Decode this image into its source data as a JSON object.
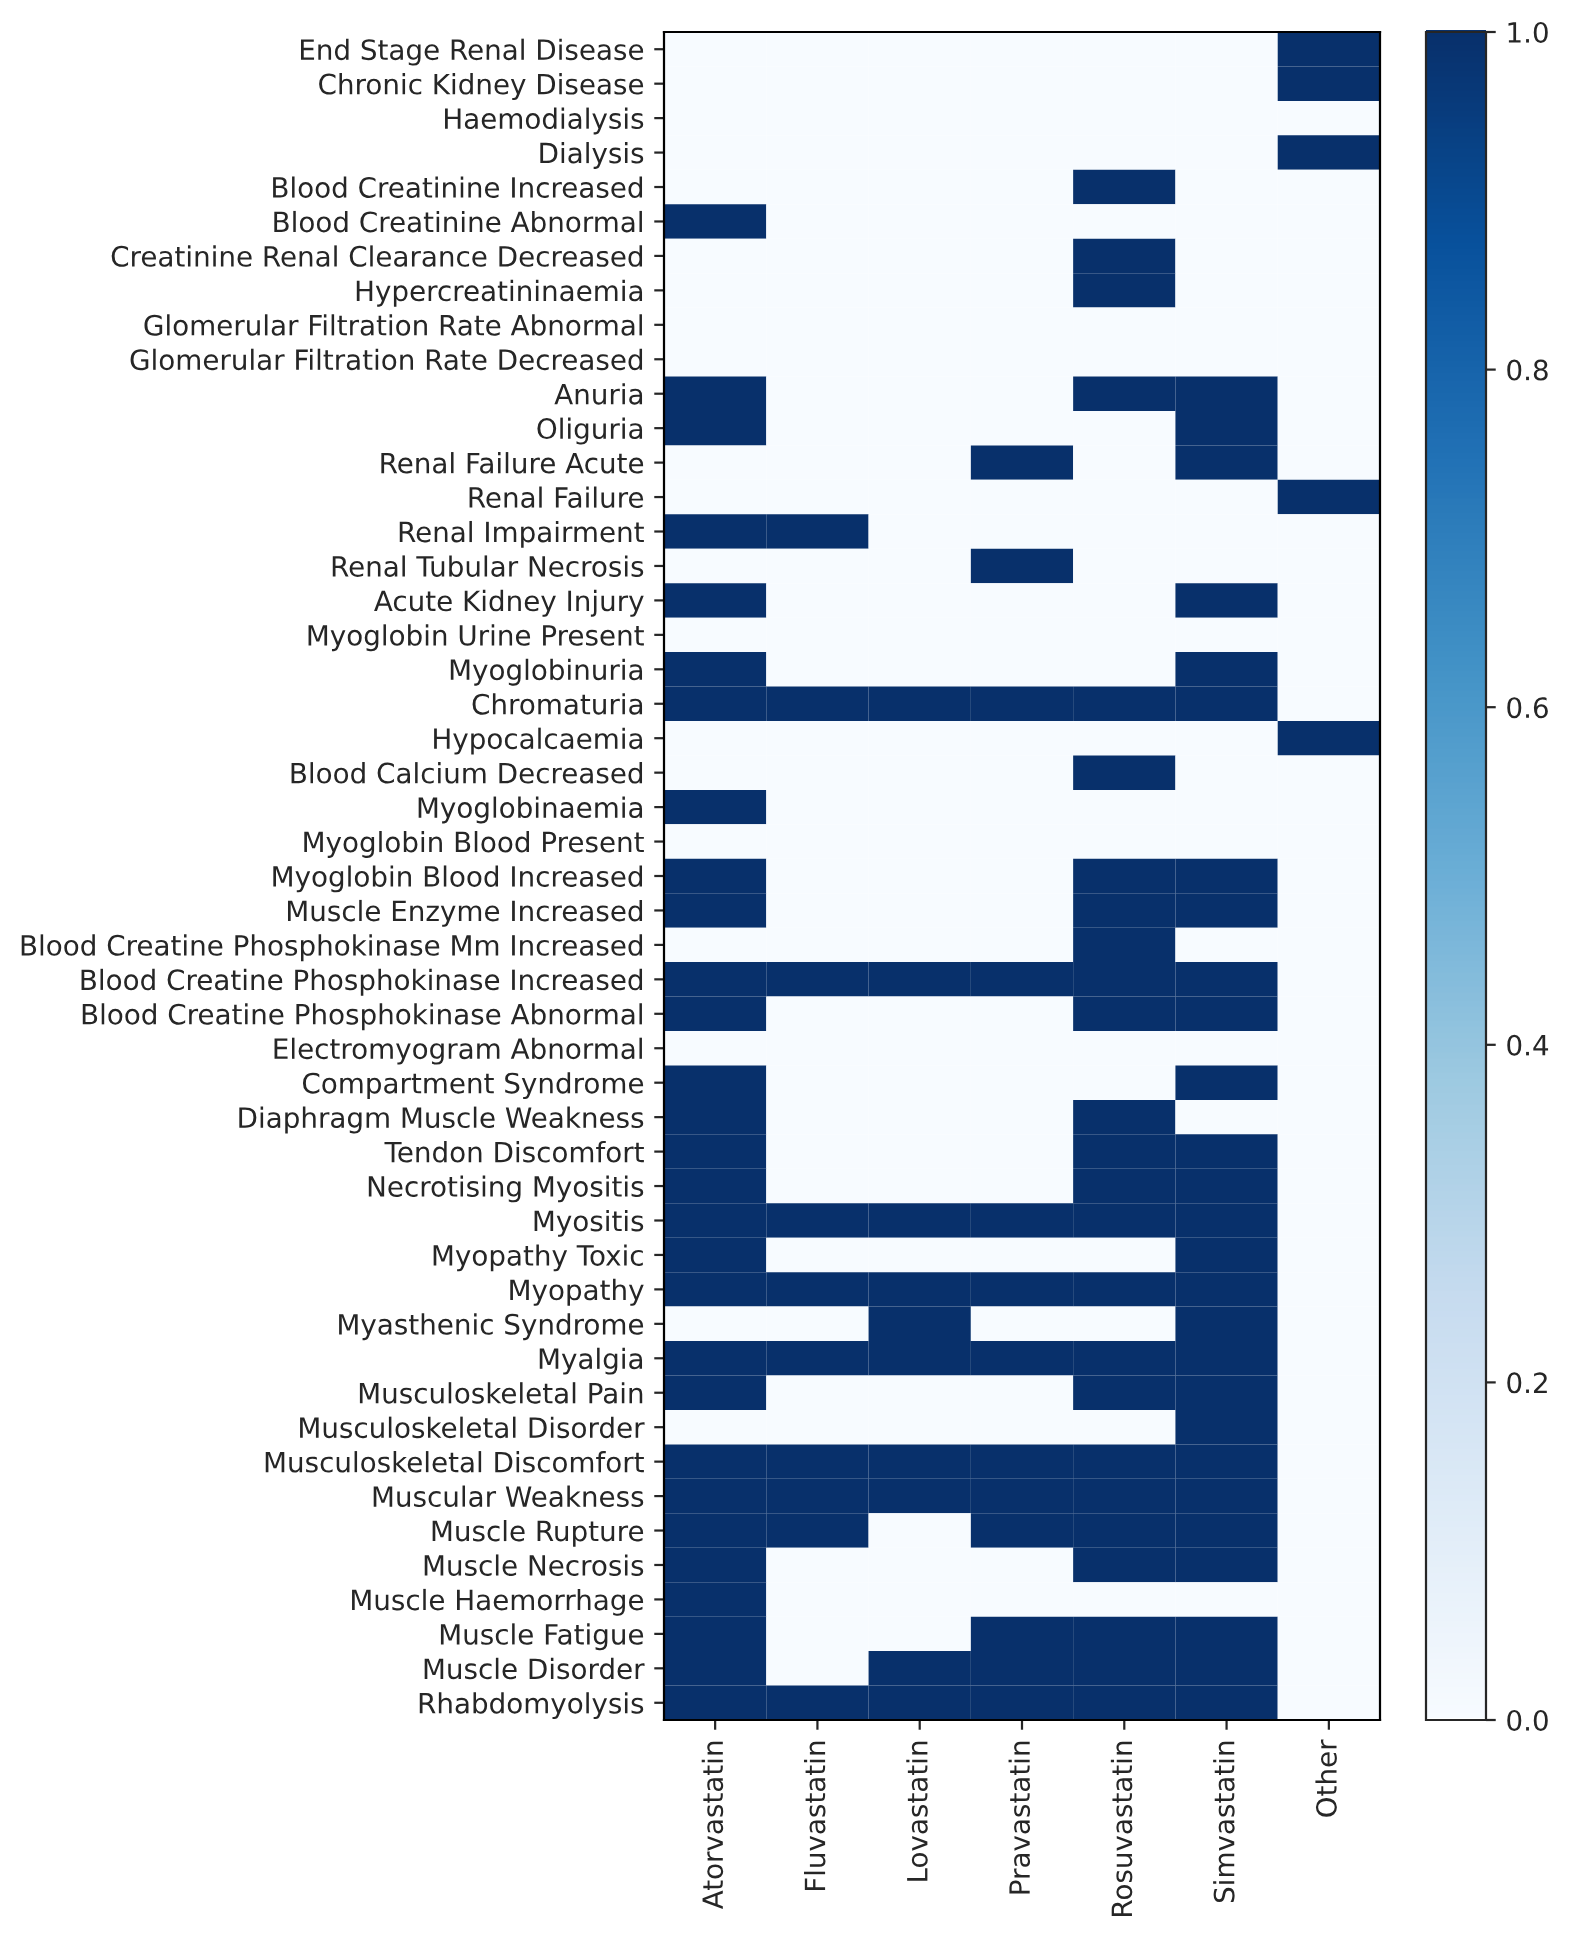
{
  "chart_data": {
    "type": "heatmap",
    "categories": [
      "Atorvastatin",
      "Fluvastatin",
      "Lovastatin",
      "Pravastatin",
      "Rosuvastatin",
      "Simvastatin",
      "Other"
    ],
    "y_categories": [
      "End Stage Renal Disease",
      "Chronic Kidney Disease",
      "Haemodialysis",
      "Dialysis",
      "Blood Creatinine Increased",
      "Blood Creatinine Abnormal",
      "Creatinine Renal Clearance Decreased",
      "Hypercreatininaemia",
      "Glomerular Filtration Rate Abnormal",
      "Glomerular Filtration Rate Decreased",
      "Anuria",
      "Oliguria",
      "Renal Failure Acute",
      "Renal Failure",
      "Renal Impairment",
      "Renal Tubular Necrosis",
      "Acute Kidney Injury",
      "Myoglobin Urine Present",
      "Myoglobinuria",
      "Chromaturia",
      "Hypocalcaemia",
      "Blood Calcium Decreased",
      "Myoglobinaemia",
      "Myoglobin Blood Present",
      "Myoglobin Blood Increased",
      "Muscle Enzyme Increased",
      "Blood Creatine Phosphokinase Mm Increased",
      "Blood Creatine Phosphokinase Increased",
      "Blood Creatine Phosphokinase Abnormal",
      "Electromyogram Abnormal",
      "Compartment Syndrome",
      "Diaphragm Muscle Weakness",
      "Tendon Discomfort",
      "Necrotising Myositis",
      "Myositis",
      "Myopathy Toxic",
      "Myopathy",
      "Myasthenic Syndrome",
      "Myalgia",
      "Musculoskeletal Pain",
      "Musculoskeletal Disorder",
      "Musculoskeletal Discomfort",
      "Muscular Weakness",
      "Muscle Rupture",
      "Muscle Necrosis",
      "Muscle Haemorrhage",
      "Muscle Fatigue",
      "Muscle Disorder",
      "Rhabdomyolysis"
    ],
    "cells": [
      [
        0,
        0,
        0,
        0,
        0,
        0,
        1
      ],
      [
        0,
        0,
        0,
        0,
        0,
        0,
        1
      ],
      [
        0,
        0,
        0,
        0,
        0,
        0,
        0
      ],
      [
        0,
        0,
        0,
        0,
        0,
        0,
        1
      ],
      [
        0,
        0,
        0,
        0,
        1,
        0,
        0
      ],
      [
        1,
        0,
        0,
        0,
        0,
        0,
        0
      ],
      [
        0,
        0,
        0,
        0,
        1,
        0,
        0
      ],
      [
        0,
        0,
        0,
        0,
        1,
        0,
        0
      ],
      [
        0,
        0,
        0,
        0,
        0,
        0,
        0
      ],
      [
        0,
        0,
        0,
        0,
        0,
        0,
        0
      ],
      [
        1,
        0,
        0,
        0,
        1,
        1,
        0
      ],
      [
        1,
        0,
        0,
        0,
        0,
        1,
        0
      ],
      [
        0,
        0,
        0,
        1,
        0,
        1,
        0
      ],
      [
        0,
        0,
        0,
        0,
        0,
        0,
        1
      ],
      [
        1,
        1,
        0,
        0,
        0,
        0,
        0
      ],
      [
        0,
        0,
        0,
        1,
        0,
        0,
        0
      ],
      [
        1,
        0,
        0,
        0,
        0,
        1,
        0
      ],
      [
        0,
        0,
        0,
        0,
        0,
        0,
        0
      ],
      [
        1,
        0,
        0,
        0,
        0,
        1,
        0
      ],
      [
        1,
        1,
        1,
        1,
        1,
        1,
        0
      ],
      [
        0,
        0,
        0,
        0,
        0,
        0,
        1
      ],
      [
        0,
        0,
        0,
        0,
        1,
        0,
        0
      ],
      [
        1,
        0,
        0,
        0,
        0,
        0,
        0
      ],
      [
        0,
        0,
        0,
        0,
        0,
        0,
        0
      ],
      [
        1,
        0,
        0,
        0,
        1,
        1,
        0
      ],
      [
        1,
        0,
        0,
        0,
        1,
        1,
        0
      ],
      [
        0,
        0,
        0,
        0,
        1,
        0,
        0
      ],
      [
        1,
        1,
        1,
        1,
        1,
        1,
        0
      ],
      [
        1,
        0,
        0,
        0,
        1,
        1,
        0
      ],
      [
        0,
        0,
        0,
        0,
        0,
        0,
        0
      ],
      [
        1,
        0,
        0,
        0,
        0,
        1,
        0
      ],
      [
        1,
        0,
        0,
        0,
        1,
        0,
        0
      ],
      [
        1,
        0,
        0,
        0,
        1,
        1,
        0
      ],
      [
        1,
        0,
        0,
        0,
        1,
        1,
        0
      ],
      [
        1,
        1,
        1,
        1,
        1,
        1,
        0
      ],
      [
        1,
        0,
        0,
        0,
        0,
        1,
        0
      ],
      [
        1,
        1,
        1,
        1,
        1,
        1,
        0
      ],
      [
        0,
        0,
        1,
        0,
        0,
        1,
        0
      ],
      [
        1,
        1,
        1,
        1,
        1,
        1,
        0
      ],
      [
        1,
        0,
        0,
        0,
        1,
        1,
        0
      ],
      [
        0,
        0,
        0,
        0,
        0,
        1,
        0
      ],
      [
        1,
        1,
        1,
        1,
        1,
        1,
        0
      ],
      [
        1,
        1,
        1,
        1,
        1,
        1,
        0
      ],
      [
        1,
        1,
        0,
        1,
        1,
        1,
        0
      ],
      [
        1,
        0,
        0,
        0,
        1,
        1,
        0
      ],
      [
        1,
        0,
        0,
        0,
        0,
        0,
        0
      ],
      [
        1,
        0,
        0,
        1,
        1,
        1,
        0
      ],
      [
        1,
        0,
        1,
        1,
        1,
        1,
        0
      ],
      [
        1,
        1,
        1,
        1,
        1,
        1,
        0
      ]
    ],
    "clim": [
      0,
      1
    ],
    "cticks": [
      {
        "value": 0,
        "label": "0.0"
      },
      0.2,
      0.4,
      0.6,
      0.8,
      {
        "value": 1,
        "label": "1.0"
      }
    ]
  }
}
